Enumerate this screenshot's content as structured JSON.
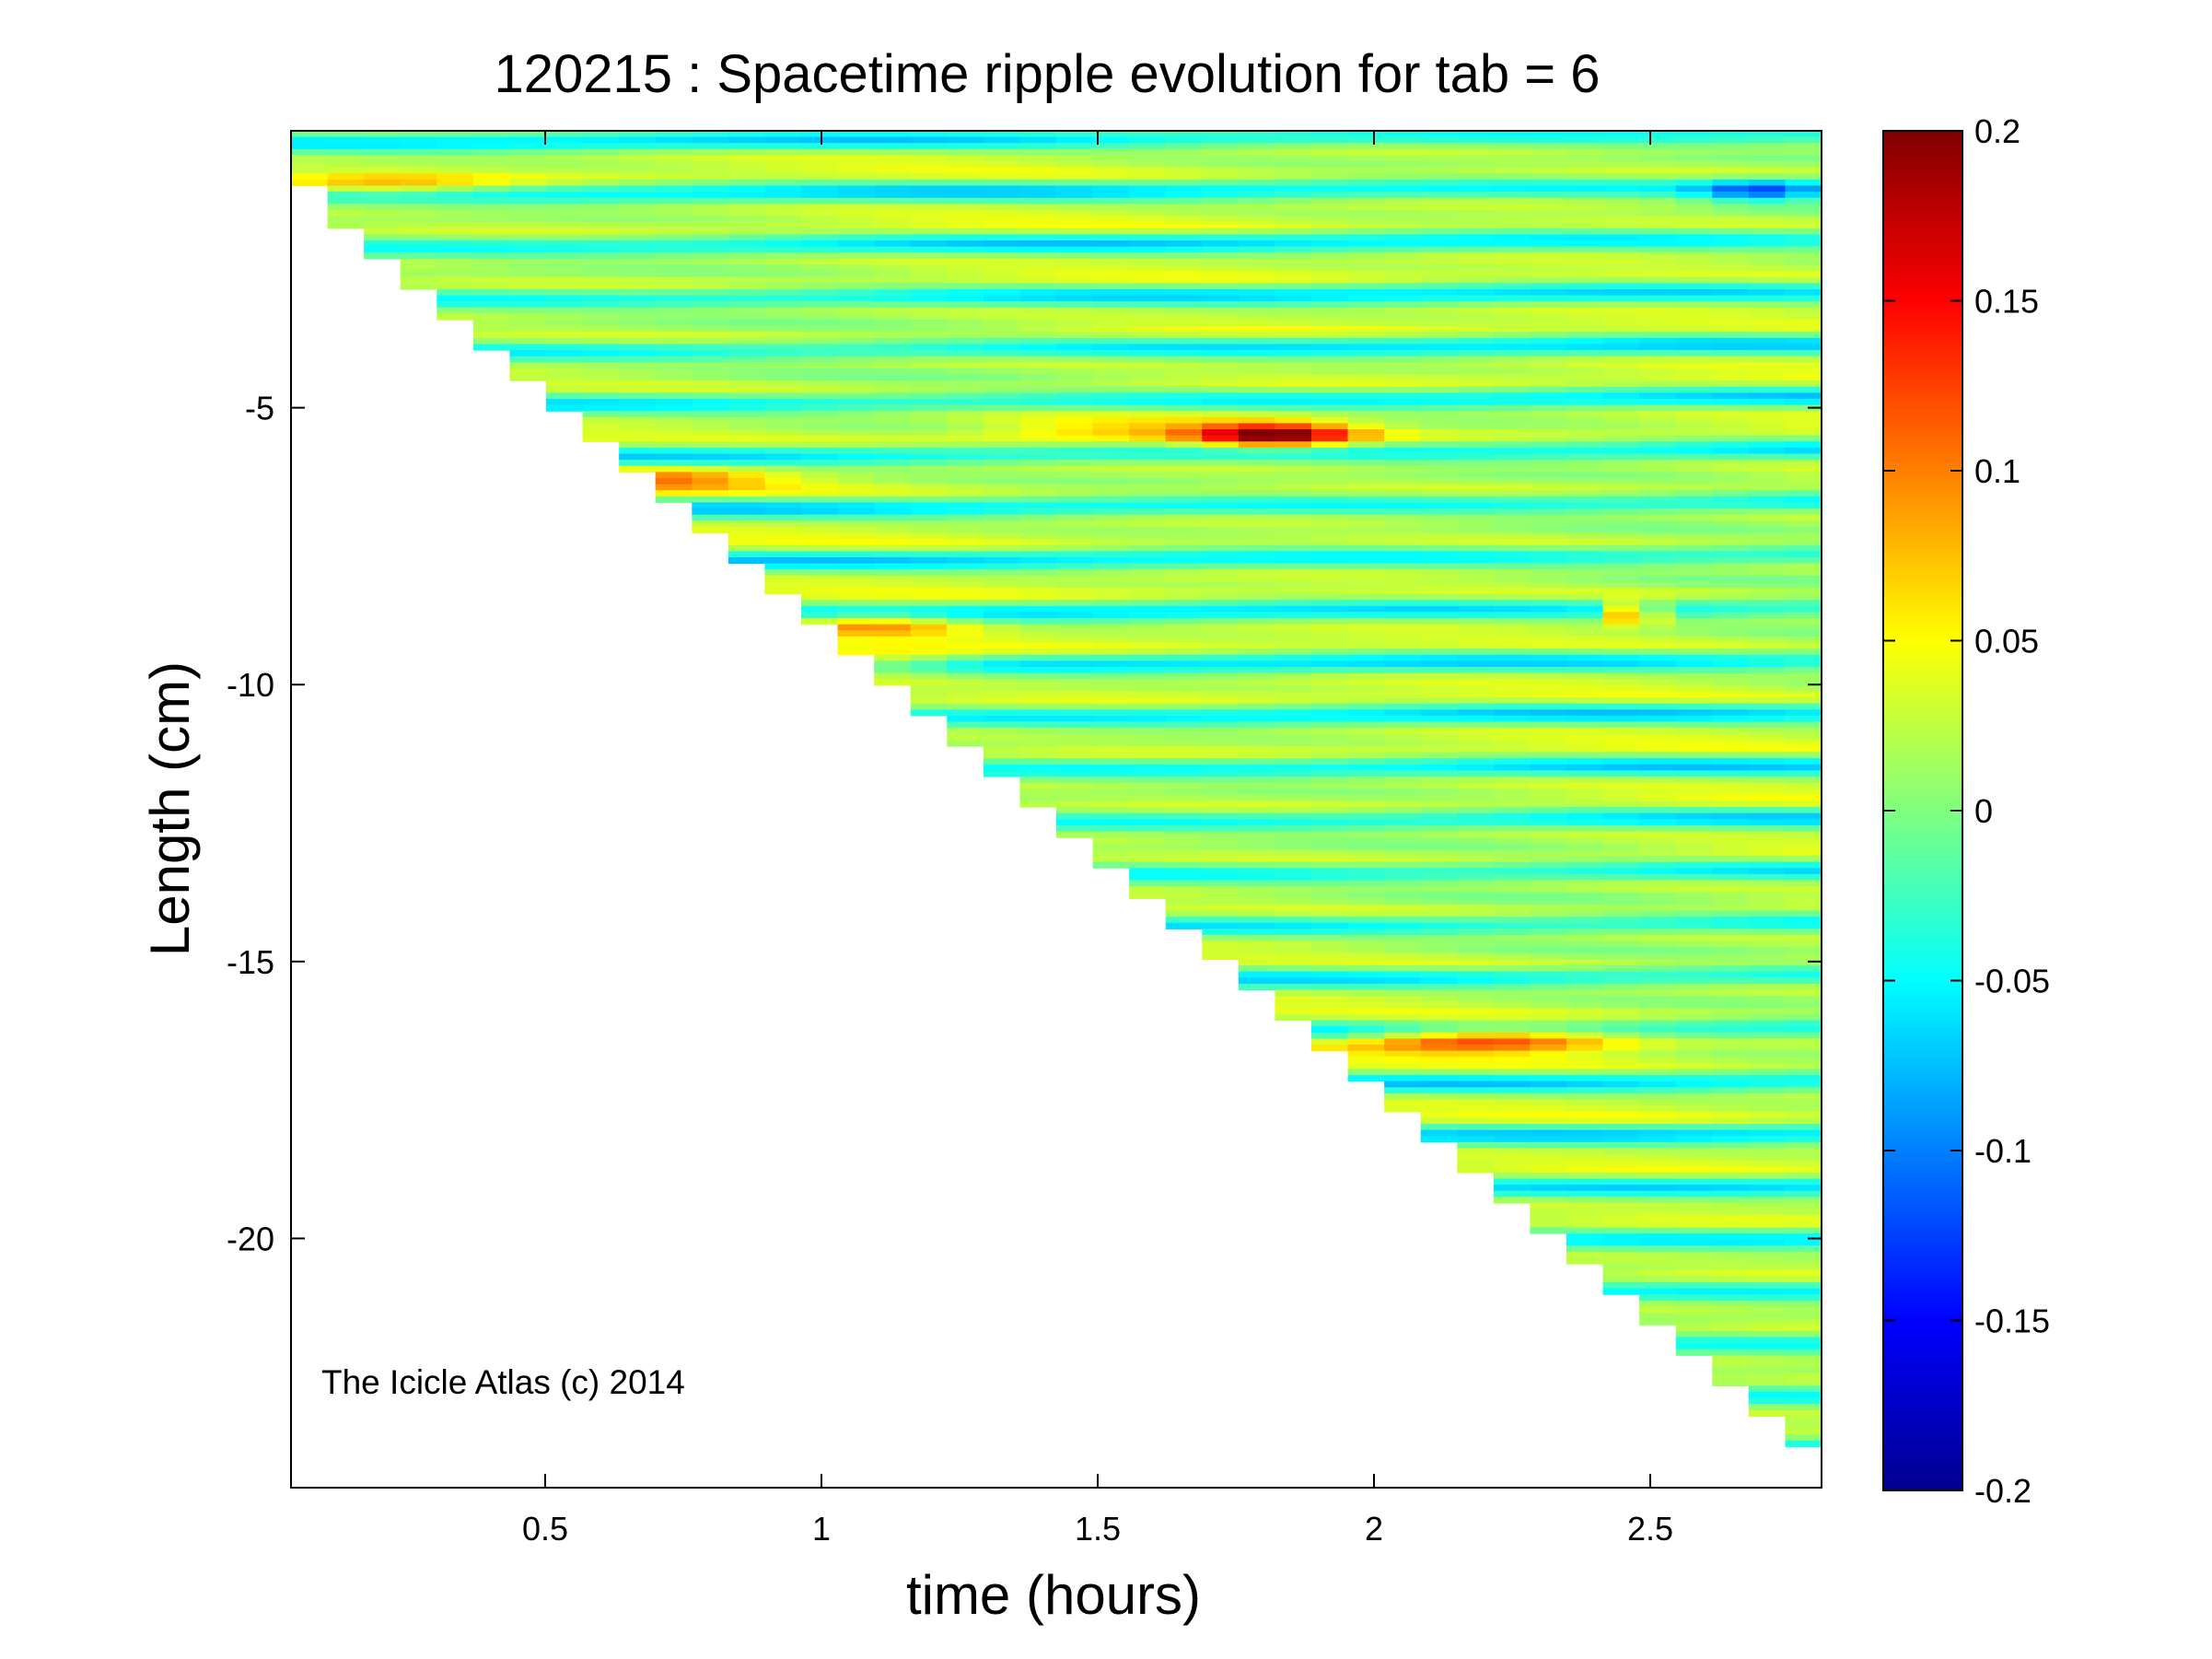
{
  "chart_data": {
    "type": "heatmap",
    "title": "120215 : Spacetime ripple evolution for tab = 6",
    "xlabel": "time (hours)",
    "ylabel": "Length (cm)",
    "xlim": [
      0.04,
      2.81
    ],
    "ylim": [
      -24.5,
      0
    ],
    "x_ticks": [
      0.5,
      1,
      1.5,
      2,
      2.5
    ],
    "x_tick_labels": [
      "0.5",
      "1",
      "1.5",
      "2",
      "2.5"
    ],
    "y_ticks": [
      -5,
      -10,
      -15,
      -20
    ],
    "y_tick_labels": [
      "-5",
      "-10",
      "-15",
      "-20"
    ],
    "colormap": "jet",
    "clim": [
      -0.2,
      0.2
    ],
    "colorbar_ticks": [
      0.2,
      0.15,
      0.1,
      0.05,
      0,
      -0.05,
      -0.1,
      -0.15,
      -0.2
    ],
    "colorbar_tick_labels": [
      "0.2",
      "0.15",
      "0.1",
      "0.05",
      "0",
      "-0.05",
      "-0.1",
      "-0.15",
      "-0.2"
    ],
    "growth_front": {
      "time_hours": [
        0.04,
        2.81
      ],
      "length_cm": [
        -0.9,
        -24.0
      ]
    },
    "ripple_wavelength_cm": 0.95,
    "annotation": "The Icicle Atlas (c) 2014",
    "grid": false,
    "colorbar_position": "right"
  }
}
